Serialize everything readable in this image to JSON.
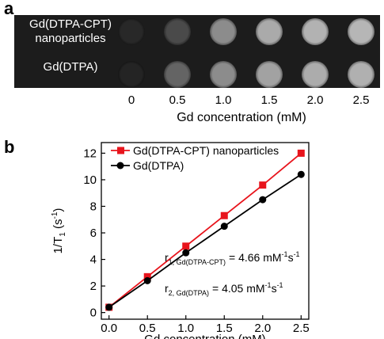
{
  "panel_a": {
    "letter": "a",
    "row_labels": [
      "Gd(DTPA-CPT)\nnanoparticles",
      "Gd(DTPA)"
    ],
    "concentrations": [
      "0",
      "0.5",
      "1.0",
      "1.5",
      "2.0",
      "2.5"
    ],
    "axis_title": "Gd concentration (mM)",
    "spot_intensity": {
      "row1": [
        0.05,
        0.22,
        0.55,
        0.7,
        0.74,
        0.76
      ],
      "row2": [
        0.03,
        0.35,
        0.55,
        0.66,
        0.71,
        0.73
      ]
    }
  },
  "panel_b": {
    "letter": "b"
  },
  "chart_data": {
    "type": "line",
    "xlabel": "Gd concentration (mM)",
    "ylabel": "1/T1 (s-1)",
    "xlim": [
      -0.1,
      2.6
    ],
    "ylim": [
      -0.5,
      12.8
    ],
    "x_ticks": [
      "0.0",
      "0.5",
      "1.0",
      "1.5",
      "2.0",
      "2.5"
    ],
    "y_ticks": [
      "0",
      "2",
      "4",
      "6",
      "8",
      "10",
      "12"
    ],
    "x": [
      0.0,
      0.5,
      1.0,
      1.5,
      2.0,
      2.5
    ],
    "series": [
      {
        "name": "Gd(DTPA-CPT) nanoparticles",
        "color": "#e8141c",
        "marker": "square",
        "values": [
          0.4,
          2.7,
          5.0,
          7.3,
          9.6,
          12.0
        ]
      },
      {
        "name": "Gd(DTPA)",
        "color": "#000000",
        "marker": "circle",
        "values": [
          0.4,
          2.4,
          4.5,
          6.5,
          8.5,
          10.4
        ]
      }
    ],
    "legend_position": "top-left",
    "annotations": {
      "r1": {
        "prefix": "r",
        "subscript": "1, Gd(DTPA-CPT)",
        "value": "= 4.66 mM",
        "exp1": "-1",
        "mid": "s",
        "exp2": "-1"
      },
      "r2": {
        "prefix": "r",
        "subscript": "2, Gd(DTPA)",
        "value": "= 4.05 mM",
        "exp1": "-1",
        "mid": "s",
        "exp2": "-1"
      }
    },
    "ylabel_parts": {
      "main": "1/T",
      "sub": "1",
      "unit": " (s",
      "exp": "-1",
      "close": ")"
    }
  }
}
